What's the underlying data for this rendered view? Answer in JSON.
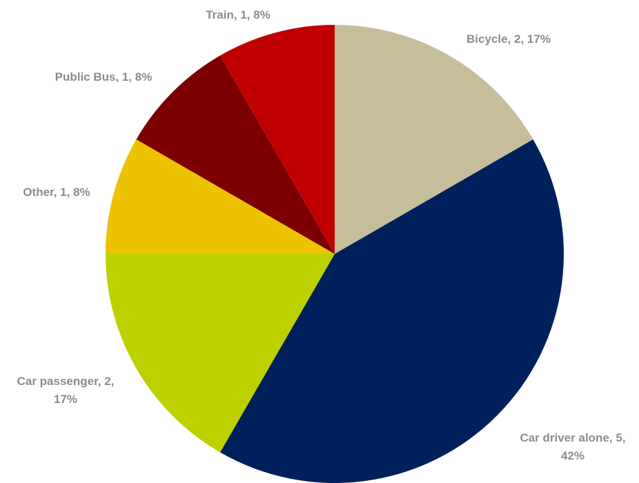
{
  "chart_data": {
    "type": "pie",
    "title": "",
    "slices": [
      {
        "name": "Bicycle",
        "value": 2,
        "percent": "17%",
        "color": "#c6bd9b",
        "label_lines": [
          "Bicycle, 2, 17%"
        ]
      },
      {
        "name": "Car driver alone",
        "value": 5,
        "percent": "42%",
        "color": "#00205b",
        "label_lines": [
          "Car driver alone, 5,",
          "42%"
        ]
      },
      {
        "name": "Car passenger",
        "value": 2,
        "percent": "17%",
        "color": "#bdd100",
        "label_lines": [
          "Car passenger, 2,",
          "17%"
        ]
      },
      {
        "name": "Other",
        "value": 1,
        "percent": "8%",
        "color": "#edc200",
        "label_lines": [
          "Other, 1, 8%"
        ]
      },
      {
        "name": "Public Bus",
        "value": 1,
        "percent": "8%",
        "color": "#7d0000",
        "label_lines": [
          "Public Bus, 1, 8%"
        ]
      },
      {
        "name": "Train",
        "value": 1,
        "percent": "8%",
        "color": "#c00000",
        "label_lines": [
          "Train, 1, 8%"
        ]
      }
    ],
    "start_angle": "12 o'clock",
    "direction": "clockwise",
    "legend": "none",
    "label_color": "#8c8c8c"
  }
}
